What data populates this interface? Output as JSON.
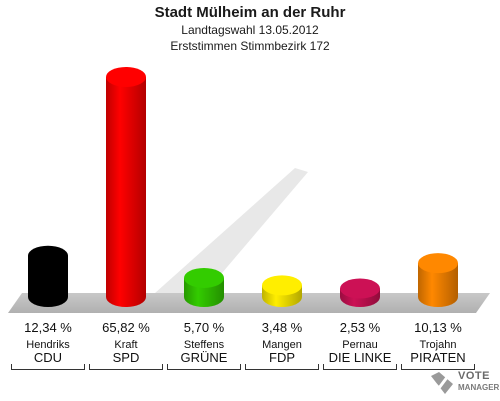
{
  "header": {
    "title": "Stadt Mülheim an der Ruhr",
    "subtitle1": "Landtagswahl 13.05.2012",
    "subtitle2": "Erststimmen Stimmbezirk 172"
  },
  "chart_data": {
    "type": "bar",
    "title": "Stadt Mülheim an der Ruhr",
    "subtitle": "Landtagswahl 13.05.2012 — Erststimmen Stimmbezirk 172",
    "categories": [
      "CDU",
      "SPD",
      "GRÜNE",
      "FDP",
      "DIE LINKE",
      "PIRATEN"
    ],
    "candidates": [
      "Hendriks",
      "Kraft",
      "Steffens",
      "Mangen",
      "Pernau",
      "Trojahn"
    ],
    "values": [
      12.34,
      65.82,
      5.7,
      3.48,
      2.53,
      10.13
    ],
    "labels": [
      "12,34 %",
      "65,82 %",
      "5,70 %",
      "3,48 %",
      "2,53 %",
      "10,13 %"
    ],
    "colors": [
      "#000000",
      "#ff0000",
      "#33cc00",
      "#ffee00",
      "#cc1155",
      "#ff8800"
    ],
    "ylim": [
      0,
      70
    ],
    "grid": false,
    "legend": "none"
  },
  "logo": {
    "icon": "vote-manager-logo-icon",
    "line1": "VOTE",
    "line2": "MANAGER"
  }
}
